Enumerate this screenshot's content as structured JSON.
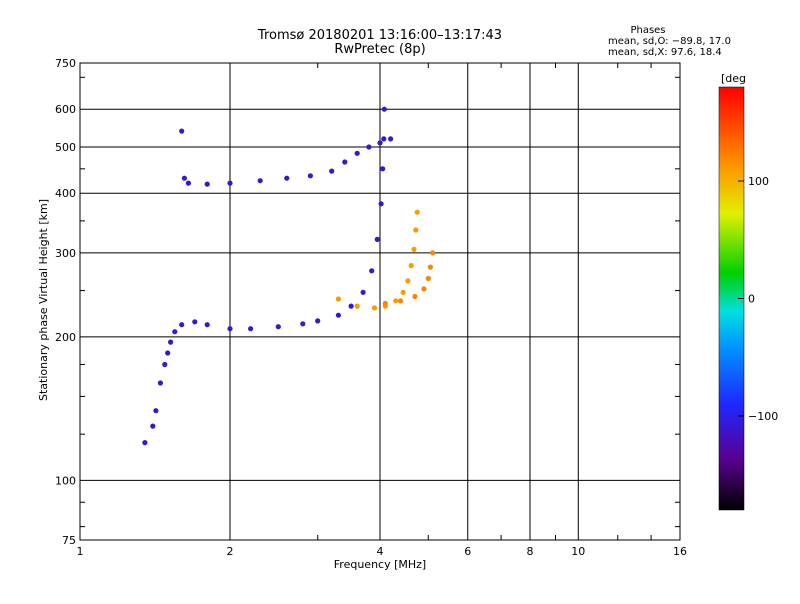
{
  "chart_data": {
    "type": "scatter",
    "title": "Tromsø 20180201 13:16:00–13:17:43",
    "subtitle": "RwPretec (8p)",
    "stats": {
      "heading": "Phases",
      "line_o": "mean, sd,O: −89.8, 17.0",
      "line_x": "mean, sd,X:  97.6, 18.4"
    },
    "xlabel": "Frequency [MHz]",
    "ylabel": "Stationary phase Virtual Height [km]",
    "x_scale": "log",
    "y_scale": "log",
    "xlim": [
      1,
      16
    ],
    "ylim": [
      75,
      750
    ],
    "x_ticks": [
      1,
      2,
      4,
      6,
      8,
      10,
      16
    ],
    "x_tick_labels": [
      "1",
      "2",
      "4",
      "6",
      "8",
      "10",
      "16"
    ],
    "y_ticks": [
      75,
      100,
      200,
      300,
      400,
      500,
      600,
      750
    ],
    "y_tick_labels": [
      "75",
      "100",
      "200",
      "300",
      "400",
      "500",
      "600",
      "750"
    ],
    "grid": true,
    "colorbar": {
      "label": "[deg",
      "range": [
        -180,
        180
      ],
      "ticks": [
        100,
        0,
        -100
      ],
      "tick_labels": [
        "100",
        "0",
        "−100"
      ]
    },
    "traces": [
      {
        "mode": "O",
        "phase_deg": -110,
        "points": [
          [
            1.35,
            120
          ],
          [
            1.4,
            130
          ],
          [
            1.42,
            140
          ],
          [
            1.45,
            160
          ],
          [
            1.48,
            175
          ],
          [
            1.5,
            185
          ],
          [
            1.52,
            195
          ],
          [
            1.55,
            205
          ],
          [
            1.6,
            212
          ],
          [
            1.7,
            215
          ],
          [
            1.8,
            212
          ],
          [
            2.0,
            208
          ],
          [
            2.2,
            208
          ],
          [
            2.5,
            210
          ],
          [
            2.8,
            213
          ],
          [
            3.0,
            216
          ],
          [
            3.3,
            222
          ],
          [
            3.5,
            232
          ],
          [
            3.7,
            248
          ],
          [
            3.85,
            275
          ],
          [
            3.95,
            320
          ],
          [
            4.02,
            380
          ],
          [
            4.05,
            450
          ],
          [
            4.07,
            520
          ],
          [
            4.08,
            600
          ]
        ]
      },
      {
        "mode": "X",
        "phase_deg": -110,
        "points": [
          [
            1.6,
            540
          ],
          [
            1.62,
            430
          ],
          [
            1.65,
            420
          ],
          [
            1.8,
            418
          ],
          [
            2.0,
            420
          ],
          [
            2.3,
            425
          ],
          [
            2.6,
            430
          ],
          [
            2.9,
            435
          ],
          [
            3.2,
            445
          ],
          [
            3.4,
            465
          ],
          [
            3.6,
            485
          ],
          [
            3.8,
            500
          ],
          [
            4.0,
            510
          ],
          [
            4.2,
            520
          ]
        ]
      },
      {
        "mode": "X-lower",
        "phase_deg": 110,
        "points": [
          [
            3.3,
            240
          ],
          [
            3.6,
            232
          ],
          [
            3.9,
            230
          ],
          [
            4.1,
            232
          ],
          [
            4.3,
            238
          ],
          [
            4.45,
            248
          ],
          [
            4.55,
            262
          ],
          [
            4.62,
            282
          ],
          [
            4.68,
            305
          ],
          [
            4.72,
            335
          ],
          [
            4.75,
            365
          ]
        ]
      },
      {
        "mode": "X-upper",
        "phase_deg": 120,
        "points": [
          [
            4.1,
            235
          ],
          [
            4.4,
            238
          ],
          [
            4.7,
            243
          ],
          [
            4.9,
            252
          ],
          [
            5.0,
            265
          ],
          [
            5.05,
            280
          ],
          [
            5.1,
            300
          ]
        ]
      }
    ]
  }
}
